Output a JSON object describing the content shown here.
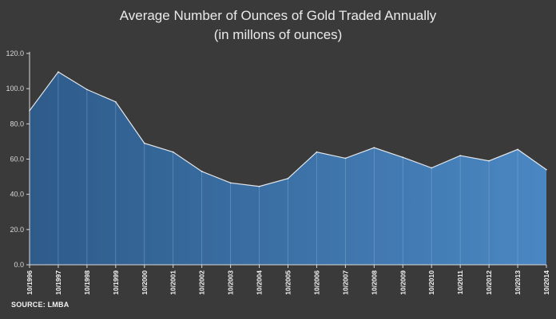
{
  "chart_data": {
    "type": "area",
    "title": "Average Number of Ounces of Gold Traded Annually",
    "subtitle": "(in millons of ounces)",
    "source": "SOURCE: LMBA",
    "categories": [
      "10/1996",
      "10/1997",
      "10/1998",
      "10/1999",
      "10/2000",
      "10/2001",
      "10/2002",
      "10/2003",
      "10/2004",
      "10/2005",
      "10/2006",
      "10/2007",
      "10/2008",
      "10/2009",
      "10/2010",
      "10/2011",
      "10/2012",
      "10/2013",
      "10/2014"
    ],
    "values": [
      87.5,
      109.5,
      99.5,
      92.5,
      69.0,
      64.0,
      53.0,
      46.5,
      44.5,
      49.0,
      64.0,
      60.5,
      66.5,
      61.0,
      55.0,
      62.0,
      59.0,
      65.5,
      54.0
    ],
    "yticks": [
      "0.0",
      "20.0",
      "40.0",
      "60.0",
      "80.0",
      "100.0",
      "120.0"
    ],
    "ylim": [
      0,
      120
    ],
    "grid": false,
    "colors": {
      "area_left": "#2e5b8a",
      "area_right": "#4a87c2",
      "line": "#ffffff",
      "background": "#3a3a3a",
      "axis": "#d9d9d9"
    }
  }
}
